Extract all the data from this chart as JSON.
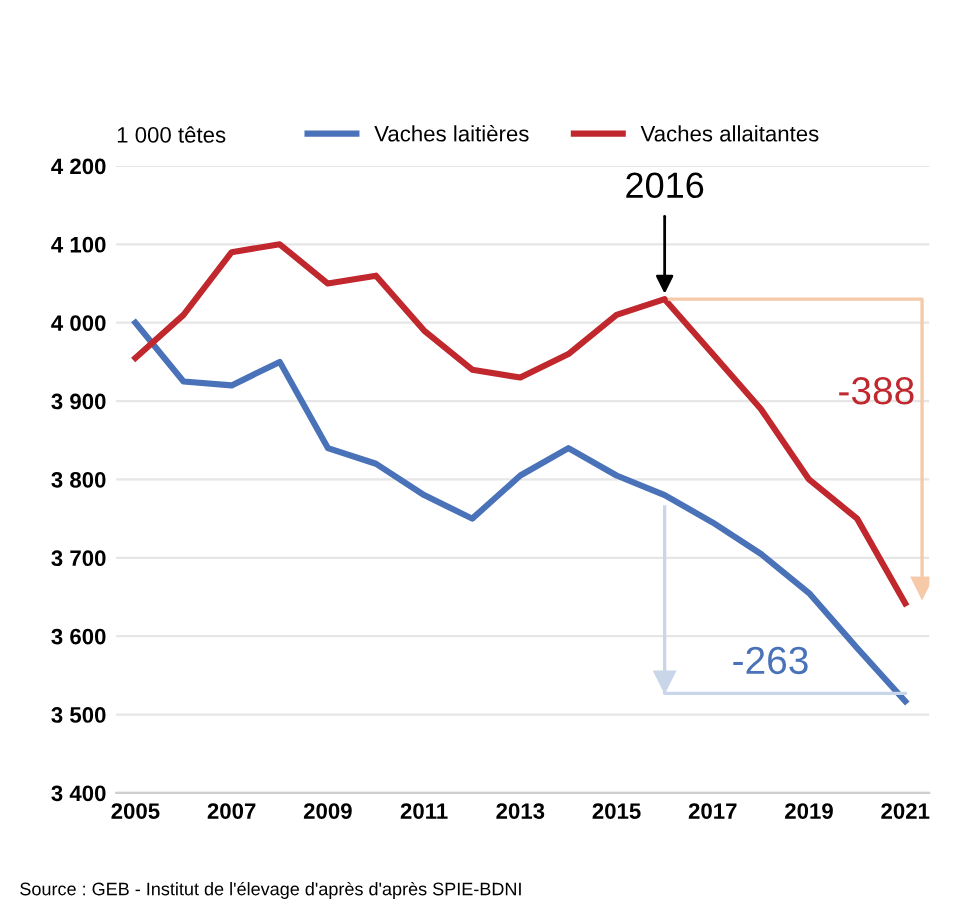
{
  "chart_data": {
    "type": "line",
    "ylabel": "1 000 têtes",
    "x": [
      2005,
      2006,
      2007,
      2008,
      2009,
      2010,
      2011,
      2012,
      2013,
      2014,
      2015,
      2016,
      2017,
      2018,
      2019,
      2020,
      2021
    ],
    "series": [
      {
        "name": "Vaches laitières",
        "color": "#4a72b8",
        "values": [
          4000,
          3925,
          3920,
          3950,
          3840,
          3820,
          3780,
          3750,
          3805,
          3840,
          3805,
          3780,
          3745,
          3705,
          3655,
          3585,
          3517
        ]
      },
      {
        "name": "Vaches allaitantes",
        "color": "#c0282d",
        "values": [
          3955,
          4010,
          4090,
          4100,
          4050,
          4060,
          3990,
          3940,
          3930,
          3960,
          4010,
          4030,
          3960,
          3890,
          3800,
          3750,
          3642
        ]
      }
    ],
    "xlim": [
      2004.6,
      2021.5
    ],
    "xticks": [
      2005,
      2007,
      2009,
      2011,
      2013,
      2015,
      2017,
      2019,
      2021
    ],
    "ylim": [
      3400,
      4200
    ],
    "yticks": [
      {
        "value": 3400,
        "label": "3 400"
      },
      {
        "value": 3500,
        "label": "3 500"
      },
      {
        "value": 3600,
        "label": "3 600"
      },
      {
        "value": 3700,
        "label": "3 700"
      },
      {
        "value": 3800,
        "label": "3 800"
      },
      {
        "value": 3900,
        "label": "3 900"
      },
      {
        "value": 4000,
        "label": "4 000"
      },
      {
        "value": 4100,
        "label": "4 100"
      },
      {
        "value": 4200,
        "label": "4 200"
      }
    ],
    "grid": "y",
    "legend": "top",
    "marker": "none",
    "line_style": "solid",
    "annotations": [
      {
        "text": "2016",
        "x": 2016,
        "y": 4030
      },
      "-388",
      "-263",
      "Source : GEB - Institut de l'élevage d'après d'après SPIE-BDNI"
    ]
  }
}
